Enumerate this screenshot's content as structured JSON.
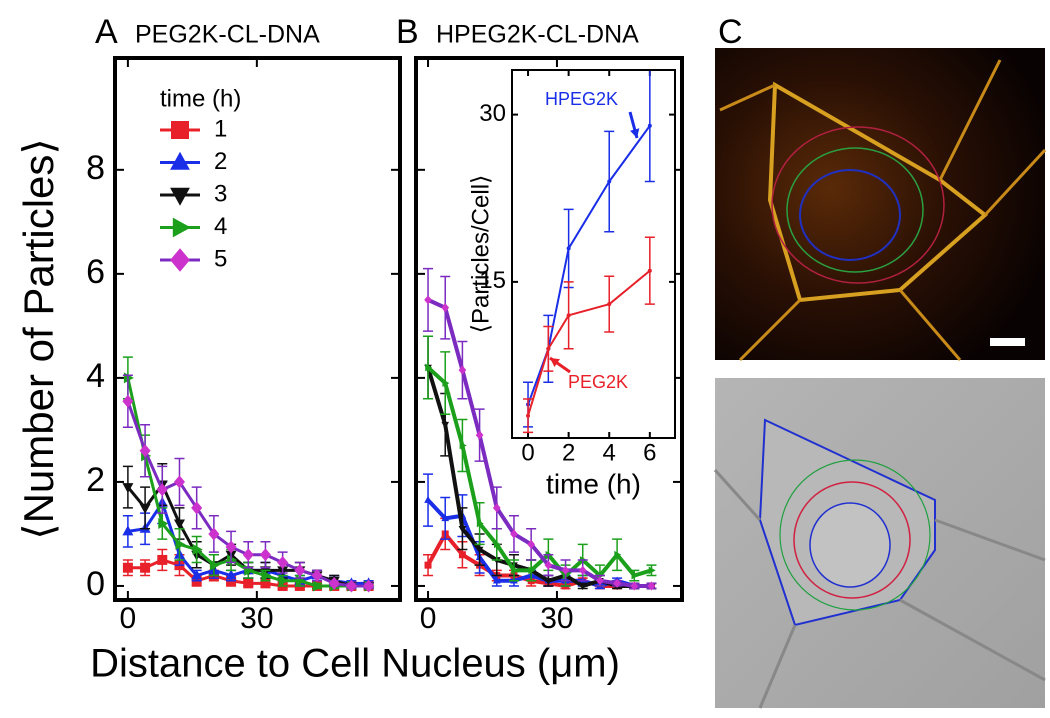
{
  "chart_data": [
    {
      "type": "line",
      "panel": "A",
      "title": "PEG2K-CL-DNA",
      "ylabel": "⟨Number of Particles⟩",
      "xlabel": "Distance to Cell Nucleus (μm)",
      "legend_title": "time (h)",
      "x": [
        0,
        4,
        8,
        12,
        16,
        20,
        24,
        28,
        32,
        36,
        40,
        44,
        48,
        52,
        56
      ],
      "xlim": [
        -3,
        63.3
      ],
      "ylim": [
        -0.27,
        10.15
      ],
      "xticks": [
        0,
        30
      ],
      "yticks": [
        0,
        2,
        4,
        6,
        8
      ],
      "show_ytick_labels": true,
      "series": [
        {
          "name": "1",
          "color": "#e8202a",
          "marker": "square",
          "values": [
            0.35,
            0.35,
            0.5,
            0.4,
            0.1,
            0.2,
            0.1,
            0.05,
            0.05,
            0,
            0,
            0,
            0,
            0,
            0
          ],
          "errors": [
            0.15,
            0.15,
            0.2,
            0.2,
            0.1,
            0.1,
            0.1,
            0.05,
            0.05,
            0.05,
            0.05,
            0.05,
            0.05,
            0.05,
            0.05
          ]
        },
        {
          "name": "2",
          "color": "#1a2ee8",
          "marker": "triangle-up",
          "values": [
            1.05,
            1.1,
            1.6,
            0.6,
            0.2,
            0.3,
            0.2,
            0.3,
            0.3,
            0.2,
            0.1,
            0.2,
            0.1,
            0.05,
            0.05
          ],
          "errors": [
            0.3,
            0.3,
            0.4,
            0.2,
            0.1,
            0.15,
            0.1,
            0.15,
            0.15,
            0.1,
            0.1,
            0.1,
            0.1,
            0.05,
            0.05
          ]
        },
        {
          "name": "3",
          "color": "#111111",
          "marker": "triangle-down",
          "values": [
            1.9,
            1.5,
            1.95,
            1.2,
            0.6,
            0.4,
            0.6,
            0.3,
            0.3,
            0.3,
            0.3,
            0.2,
            0.1,
            0,
            0
          ],
          "errors": [
            0.4,
            0.4,
            0.4,
            0.3,
            0.25,
            0.2,
            0.2,
            0.15,
            0.15,
            0.15,
            0.15,
            0.1,
            0.1,
            0.05,
            0.05
          ]
        },
        {
          "name": "4",
          "color": "#1ca01c",
          "marker": "triangle-right",
          "values": [
            4.0,
            2.5,
            1.2,
            0.8,
            0.7,
            0.4,
            0.5,
            0.3,
            0.2,
            0.1,
            0.1,
            0,
            0,
            0,
            0
          ],
          "errors": [
            0.4,
            0.4,
            0.3,
            0.3,
            0.25,
            0.2,
            0.2,
            0.15,
            0.1,
            0.1,
            0.1,
            0.05,
            0.05,
            0.05,
            0.05
          ]
        },
        {
          "name": "5",
          "color": "#cc33cc",
          "lineColor": "#7b2bc0",
          "marker": "diamond",
          "values": [
            3.55,
            2.6,
            1.85,
            2.0,
            1.5,
            1.0,
            0.75,
            0.6,
            0.6,
            0.45,
            0.3,
            0.2,
            0.05,
            0,
            0
          ],
          "errors": [
            0.5,
            0.5,
            0.45,
            0.45,
            0.4,
            0.35,
            0.3,
            0.25,
            0.25,
            0.2,
            0.15,
            0.1,
            0.05,
            0.05,
            0.05
          ]
        }
      ]
    },
    {
      "type": "line",
      "panel": "B",
      "title": "HPEG2K-CL-DNA",
      "x": [
        0,
        4,
        8,
        12,
        16,
        20,
        24,
        28,
        32,
        36,
        40,
        44,
        48,
        52
      ],
      "xlim": [
        -2.8,
        59.1
      ],
      "ylim": [
        -0.27,
        10.15
      ],
      "xticks": [
        0,
        30
      ],
      "yticks": [
        0,
        2,
        4,
        6,
        8
      ],
      "show_ytick_labels": false,
      "series": [
        {
          "color": "#e8202a",
          "marker": "square",
          "values": [
            0.4,
            1.0,
            0.6,
            0.4,
            0.2,
            0.2,
            0.1,
            0.05,
            0,
            0.1,
            0,
            0,
            0,
            0
          ],
          "errors": [
            0.2,
            0.3,
            0.25,
            0.2,
            0.1,
            0.1,
            0.1,
            0.05,
            0.05,
            0.05,
            0.05,
            0.05,
            0.05,
            0.05
          ]
        },
        {
          "color": "#1a2ee8",
          "marker": "triangle-up",
          "values": [
            1.65,
            1.3,
            1.35,
            0.55,
            0.1,
            0.1,
            0.2,
            0.1,
            0.1,
            0.1,
            0,
            0.1,
            0,
            0
          ],
          "errors": [
            0.5,
            0.4,
            0.4,
            0.3,
            0.1,
            0.1,
            0.1,
            0.1,
            0.1,
            0.1,
            0.05,
            0.05,
            0.05,
            0.05
          ]
        },
        {
          "color": "#111111",
          "marker": "triangle-down",
          "values": [
            4.2,
            3.1,
            1.1,
            0.7,
            0.5,
            0.4,
            0.3,
            0.1,
            0.2,
            0,
            0.1,
            0,
            0,
            0
          ],
          "errors": [
            0.6,
            0.6,
            0.4,
            0.3,
            0.3,
            0.2,
            0.2,
            0.1,
            0.1,
            0.05,
            0.1,
            0.05,
            0.05,
            0.05
          ]
        },
        {
          "color": "#1ca01c",
          "marker": "triangle-right",
          "values": [
            4.2,
            3.9,
            2.7,
            1.2,
            0.8,
            0.3,
            0.3,
            0.6,
            0.2,
            0.5,
            0.2,
            0.6,
            0.2,
            0.3
          ],
          "errors": [
            0.6,
            0.6,
            0.5,
            0.4,
            0.3,
            0.2,
            0.2,
            0.3,
            0.2,
            0.3,
            0.2,
            0.3,
            0.1,
            0.1
          ]
        },
        {
          "color": "#cc33cc",
          "lineColor": "#7b2bc0",
          "marker": "diamond",
          "values": [
            5.5,
            5.35,
            4.15,
            2.9,
            1.5,
            1.0,
            0.8,
            0.4,
            0.3,
            0.3,
            0.1,
            0.05,
            0,
            0
          ],
          "errors": [
            0.6,
            0.6,
            0.55,
            0.5,
            0.4,
            0.35,
            0.3,
            0.2,
            0.2,
            0.2,
            0.1,
            0.05,
            0.05,
            0.05
          ]
        }
      ]
    },
    {
      "type": "line",
      "inset": true,
      "ylabel": "⟨Particles/Cell⟩",
      "xlabel": "time (h)",
      "x": [
        0,
        1,
        2,
        4,
        6
      ],
      "xlim": [
        -0.79,
        7.24
      ],
      "ylim": [
        1,
        34
      ],
      "xticks": [
        0,
        2,
        4,
        6
      ],
      "yticks": [
        15,
        30
      ],
      "show_ytick_labels": true,
      "series": [
        {
          "name": "HPEG2K",
          "color": "#1a2ee8",
          "values": [
            4,
            9,
            18,
            24,
            29
          ],
          "errors": [
            2,
            3,
            3.5,
            4.5,
            5
          ]
        },
        {
          "name": "PEG2K",
          "color": "#e8202a",
          "values": [
            3,
            9,
            12,
            13,
            16
          ],
          "errors": [
            1.5,
            2,
            3,
            2.5,
            3
          ]
        }
      ]
    }
  ],
  "panel_c": {
    "label": "C"
  }
}
